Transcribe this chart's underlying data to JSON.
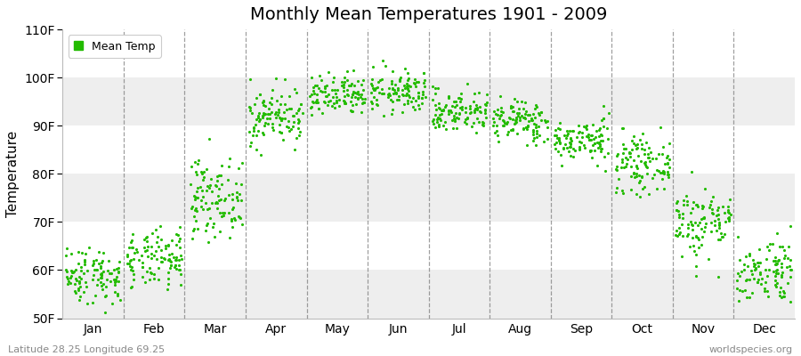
{
  "title": "Monthly Mean Temperatures 1901 - 2009",
  "ylabel": "Temperature",
  "xlabel_labels": [
    "Jan",
    "Feb",
    "Mar",
    "Apr",
    "May",
    "Jun",
    "Jul",
    "Aug",
    "Sep",
    "Oct",
    "Nov",
    "Dec"
  ],
  "ytick_labels": [
    "50F",
    "60F",
    "70F",
    "80F",
    "90F",
    "100F",
    "110F"
  ],
  "ytick_values": [
    50,
    60,
    70,
    80,
    90,
    100,
    110
  ],
  "ylim": [
    50,
    110
  ],
  "legend_label": "Mean Temp",
  "dot_color": "#22bb00",
  "background_color": "#ffffff",
  "stripe_color_light": "#ffffff",
  "stripe_color_dark": "#eeeeee",
  "footer_left": "Latitude 28.25 Longitude 69.25",
  "footer_right": "worldspecies.org",
  "monthly_means": [
    59,
    62,
    75,
    92,
    96,
    97,
    93,
    91,
    87,
    82,
    70,
    60
  ],
  "monthly_stds": [
    3.0,
    3.0,
    4.0,
    3.0,
    2.2,
    2.2,
    2.2,
    2.2,
    2.2,
    2.8,
    3.8,
    3.5
  ],
  "n_years": 109
}
